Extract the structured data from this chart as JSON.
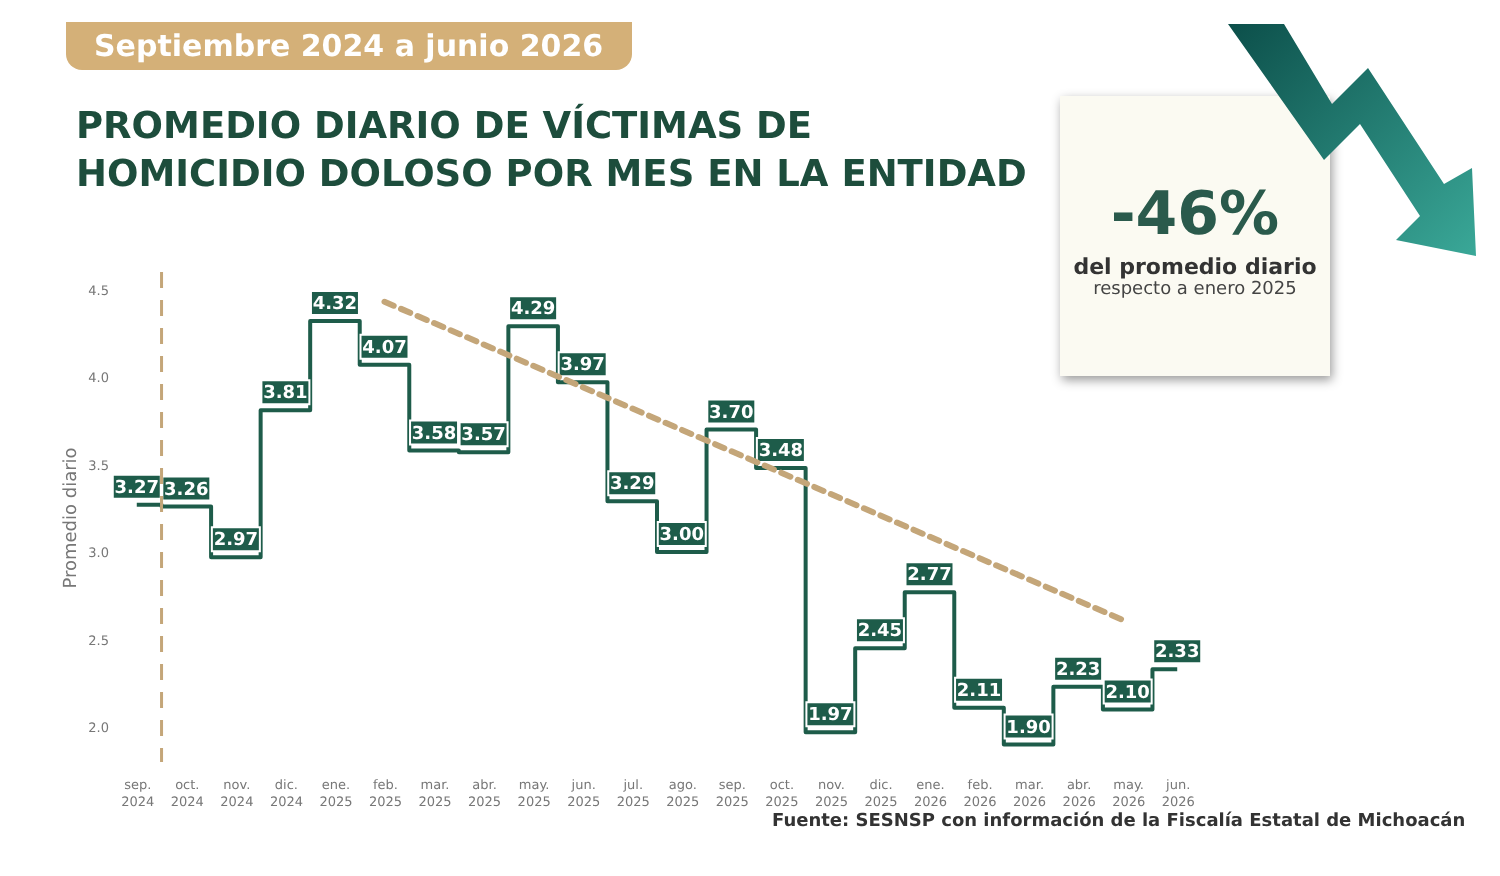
{
  "chart_data": {
    "type": "step",
    "title": "PROMEDIO DIARIO DE VÍCTIMAS DE HOMICIDIO DOLOSO POR MES EN LA ENTIDAD",
    "subtitle": "Septiembre 2024 a junio 2026",
    "ylabel": "Promedio diario",
    "categories": [
      "sep. 2024",
      "oct. 2024",
      "nov. 2024",
      "dic. 2024",
      "ene. 2025",
      "feb. 2025",
      "mar. 2025",
      "abr. 2025",
      "may. 2025",
      "jun. 2025",
      "jul. 2025",
      "ago. 2025",
      "sep. 2025",
      "oct. 2025",
      "nov. 2025",
      "dic. 2025",
      "ene. 2026",
      "feb. 2026",
      "mar. 2026",
      "abr. 2026",
      "may. 2026",
      "jun. 2026"
    ],
    "series": [
      {
        "color": "#1e5c4a",
        "values": [
          3.27,
          3.26,
          2.97,
          3.81,
          4.32,
          4.07,
          3.58,
          3.57,
          4.29,
          3.97,
          3.29,
          3.0,
          3.7,
          3.48,
          1.97,
          2.45,
          2.77,
          2.11,
          1.9,
          2.23,
          2.1,
          2.33
        ],
        "value_labels": [
          "3.27",
          "3.26",
          "2.97",
          "3.81",
          "4.32",
          "4.07",
          "3.58",
          "3.57",
          "4.29",
          "3.97",
          "3.29",
          "3.00",
          "3.70",
          "3.48",
          "1.97",
          "2.45",
          "2.77",
          "2.11",
          "1.90",
          "2.23",
          "2.10",
          "2.33"
        ]
      },
      {
        "type": "line",
        "color": "#c4a679",
        "line_style": "dashed",
        "x": [
          "feb. 2025",
          "may. 2026"
        ],
        "values": [
          4.43,
          2.6
        ]
      }
    ],
    "ylim": [
      1.8,
      4.6
    ],
    "yticks": [
      {
        "value": 2,
        "label": "2.0"
      },
      {
        "value": 2.5,
        "label": "2.5"
      },
      {
        "value": 3,
        "label": "3.0"
      },
      {
        "value": 3.5,
        "label": "3.5"
      },
      {
        "value": 4,
        "label": "4.0"
      },
      {
        "value": 4.5,
        "label": "4.5"
      }
    ],
    "ref_lines": [
      {
        "axis": "x",
        "value": "oct. 2024",
        "color": "#c4a679",
        "line_style": "dashed"
      }
    ],
    "grid": false,
    "marker": "none",
    "annotations": [
      "-46%",
      "del promedio diario",
      "respecto a enero 2025",
      "Fuente: SESNSP con información de la Fiscalía Estatal de Michoacán"
    ]
  }
}
